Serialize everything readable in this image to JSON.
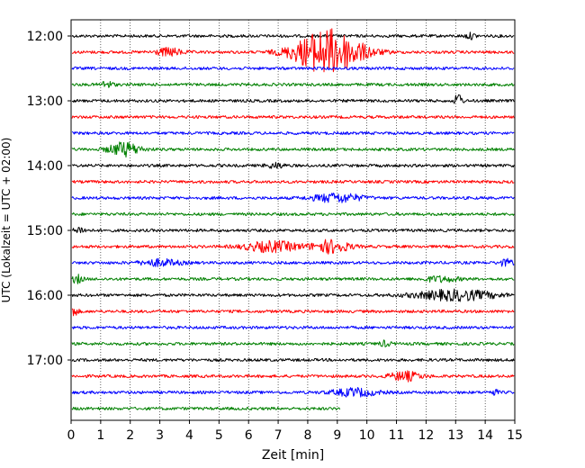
{
  "chart_data": {
    "type": "line",
    "title": "",
    "xlabel": "Zeit  [min]",
    "ylabel": "UTC (Lokalzeit = UTC + 02:00)",
    "xlim": [
      0,
      15
    ],
    "x_ticks": [
      "0",
      "1",
      "2",
      "3",
      "4",
      "5",
      "6",
      "7",
      "8",
      "9",
      "10",
      "11",
      "12",
      "13",
      "14",
      "15"
    ],
    "y_ticks": [
      "12:00",
      "13:00",
      "14:00",
      "15:00",
      "16:00",
      "17:00"
    ],
    "grid": "vertical-dotted",
    "trace_interval_min": 15,
    "start_time": "12:00",
    "colors": [
      "#000000",
      "#ff0000",
      "#0000ff",
      "#008000"
    ],
    "traces": [
      {
        "time": "12:00",
        "color": "#000000",
        "end_min": 15,
        "events": [
          {
            "t": 13.5,
            "amp": 0.4,
            "dur": 0.5
          }
        ]
      },
      {
        "time": "12:15",
        "color": "#ff0000",
        "end_min": 15,
        "events": [
          {
            "t": 3.3,
            "amp": 0.6,
            "dur": 1.2
          },
          {
            "t": 8.7,
            "amp": 3.6,
            "dur": 3.0
          }
        ]
      },
      {
        "time": "12:30",
        "color": "#0000ff",
        "end_min": 15,
        "events": []
      },
      {
        "time": "12:45",
        "color": "#008000",
        "end_min": 15,
        "events": [
          {
            "t": 1.2,
            "amp": 0.5,
            "dur": 0.6
          }
        ]
      },
      {
        "time": "13:00",
        "color": "#000000",
        "end_min": 15,
        "events": [
          {
            "t": 13.1,
            "amp": 1.4,
            "dur": 0.3
          }
        ]
      },
      {
        "time": "13:15",
        "color": "#ff0000",
        "end_min": 15,
        "events": []
      },
      {
        "time": "13:30",
        "color": "#0000ff",
        "end_min": 15,
        "events": []
      },
      {
        "time": "13:45",
        "color": "#008000",
        "end_min": 15,
        "events": [
          {
            "t": 1.8,
            "amp": 1.1,
            "dur": 1.4
          }
        ]
      },
      {
        "time": "14:00",
        "color": "#000000",
        "end_min": 15,
        "events": [
          {
            "t": 6.9,
            "amp": 0.4,
            "dur": 0.8
          }
        ]
      },
      {
        "time": "14:15",
        "color": "#ff0000",
        "end_min": 15,
        "events": []
      },
      {
        "time": "14:30",
        "color": "#0000ff",
        "end_min": 15,
        "events": [
          {
            "t": 9.0,
            "amp": 0.7,
            "dur": 2.2
          }
        ]
      },
      {
        "time": "14:45",
        "color": "#008000",
        "end_min": 15,
        "events": []
      },
      {
        "time": "15:00",
        "color": "#000000",
        "end_min": 15,
        "events": [
          {
            "t": 0.3,
            "amp": 0.5,
            "dur": 0.5
          }
        ]
      },
      {
        "time": "15:15",
        "color": "#ff0000",
        "end_min": 15,
        "events": [
          {
            "t": 6.8,
            "amp": 0.8,
            "dur": 2.5
          },
          {
            "t": 8.8,
            "amp": 1.0,
            "dur": 1.6
          }
        ]
      },
      {
        "time": "15:30",
        "color": "#0000ff",
        "end_min": 15,
        "events": [
          {
            "t": 3.0,
            "amp": 0.5,
            "dur": 1.8
          },
          {
            "t": 14.7,
            "amp": 0.5,
            "dur": 0.6
          }
        ]
      },
      {
        "time": "15:45",
        "color": "#008000",
        "end_min": 15,
        "events": [
          {
            "t": 0.2,
            "amp": 0.6,
            "dur": 0.5
          },
          {
            "t": 12.5,
            "amp": 0.4,
            "dur": 1.6
          }
        ]
      },
      {
        "time": "16:00",
        "color": "#000000",
        "end_min": 15,
        "events": [
          {
            "t": 13.0,
            "amp": 0.8,
            "dur": 3.6
          }
        ]
      },
      {
        "time": "16:15",
        "color": "#ff0000",
        "end_min": 15,
        "events": [
          {
            "t": 0.1,
            "amp": 0.6,
            "dur": 0.4
          }
        ]
      },
      {
        "time": "16:30",
        "color": "#0000ff",
        "end_min": 15,
        "events": []
      },
      {
        "time": "16:45",
        "color": "#008000",
        "end_min": 15,
        "events": [
          {
            "t": 10.6,
            "amp": 0.4,
            "dur": 0.5
          }
        ]
      },
      {
        "time": "17:00",
        "color": "#000000",
        "end_min": 15,
        "events": []
      },
      {
        "time": "17:15",
        "color": "#ff0000",
        "end_min": 15,
        "events": [
          {
            "t": 11.3,
            "amp": 0.7,
            "dur": 1.4
          }
        ]
      },
      {
        "time": "17:30",
        "color": "#0000ff",
        "end_min": 15,
        "events": [
          {
            "t": 9.6,
            "amp": 0.6,
            "dur": 2.0
          },
          {
            "t": 14.3,
            "amp": 0.4,
            "dur": 0.4
          }
        ]
      },
      {
        "time": "17:45",
        "color": "#008000",
        "end_min": 9.1,
        "events": []
      }
    ]
  }
}
